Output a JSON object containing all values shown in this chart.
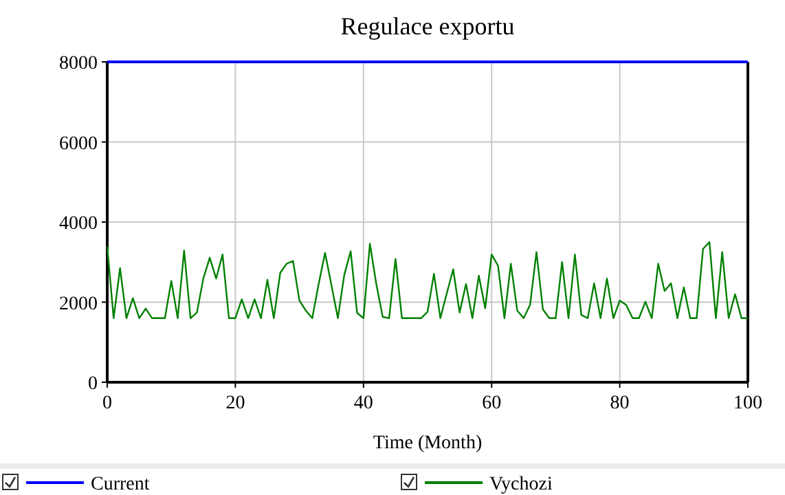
{
  "chart_data": {
    "type": "line",
    "title": "Regulace exportu",
    "xlabel": "Time (Month)",
    "xlim": [
      0,
      100
    ],
    "xticks": [
      0,
      20,
      40,
      60,
      80,
      100
    ],
    "ylim": [
      0,
      8000
    ],
    "yticks": [
      0,
      2000,
      4000,
      6000,
      8000
    ],
    "grid": true,
    "legend": "bottom",
    "marker": "none",
    "line_style": "solid",
    "series": [
      {
        "name": "Current",
        "color": "#0000ff",
        "x": [
          0,
          100
        ],
        "values": [
          8000,
          8000
        ]
      },
      {
        "name": "Vychozi",
        "color": "#008000",
        "x": [
          0,
          1,
          2,
          3,
          4,
          5,
          6,
          7,
          8,
          9,
          10,
          11,
          12,
          13,
          14,
          15,
          16,
          17,
          18,
          19,
          20,
          21,
          22,
          23,
          24,
          25,
          26,
          27,
          28,
          29,
          30,
          31,
          32,
          33,
          34,
          35,
          36,
          37,
          38,
          39,
          40,
          41,
          42,
          43,
          44,
          45,
          46,
          47,
          48,
          49,
          50,
          51,
          52,
          53,
          54,
          55,
          56,
          57,
          58,
          59,
          60,
          61,
          62,
          63,
          64,
          65,
          66,
          67,
          68,
          69,
          70,
          71,
          72,
          73,
          74,
          75,
          76,
          77,
          78,
          79,
          80,
          81,
          82,
          83,
          84,
          85,
          86,
          87,
          88,
          89,
          90,
          91,
          92,
          93,
          94,
          95,
          96,
          97,
          98,
          99,
          100
        ],
        "values": [
          3390,
          1600,
          2850,
          1600,
          2100,
          1600,
          1840,
          1600,
          1600,
          1600,
          2530,
          1600,
          3290,
          1600,
          1740,
          2590,
          3110,
          2590,
          3190,
          1600,
          1600,
          2070,
          1600,
          2070,
          1600,
          2560,
          1600,
          2730,
          2960,
          3030,
          2040,
          1790,
          1600,
          2450,
          3230,
          2420,
          1600,
          2680,
          3270,
          1730,
          1600,
          3460,
          2450,
          1630,
          1600,
          3080,
          1600,
          1600,
          1600,
          1600,
          1760,
          2710,
          1600,
          2220,
          2820,
          1740,
          2450,
          1600,
          2660,
          1850,
          3190,
          2910,
          1600,
          2960,
          1790,
          1600,
          1930,
          3250,
          1820,
          1600,
          1600,
          3000,
          1600,
          3190,
          1680,
          1600,
          2470,
          1600,
          2590,
          1600,
          2040,
          1930,
          1600,
          1600,
          2010,
          1600,
          2960,
          2280,
          2470,
          1600,
          2370,
          1600,
          1600,
          3330,
          3500,
          1600,
          3250,
          1600,
          2200,
          1600,
          1600
        ]
      }
    ]
  }
}
